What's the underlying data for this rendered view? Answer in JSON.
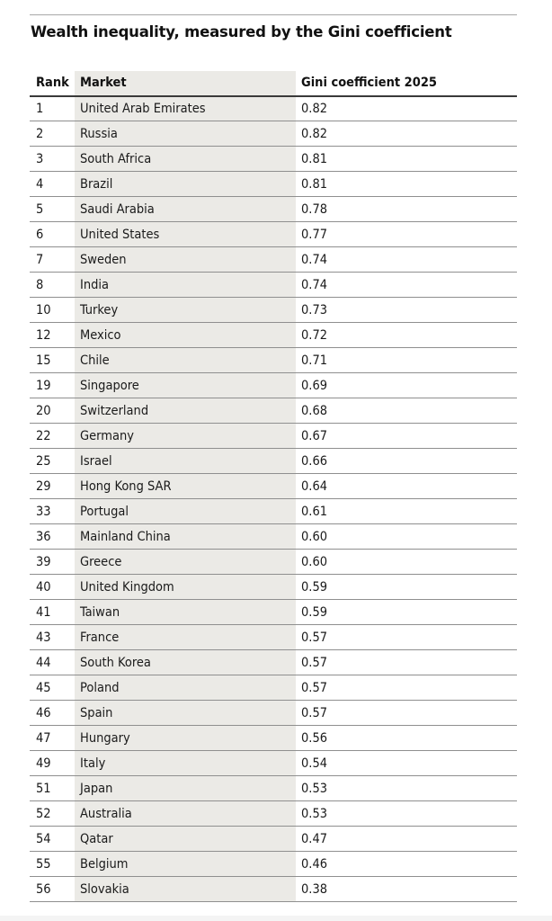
{
  "title": "Wealth inequality, measured by the Gini coefficient",
  "table": {
    "headers": {
      "rank": "Rank",
      "market": "Market",
      "gini": "Gini coefficient 2025"
    },
    "rows": [
      {
        "rank": "1",
        "market": "United Arab Emirates",
        "gini": "0.82"
      },
      {
        "rank": "2",
        "market": "Russia",
        "gini": "0.82"
      },
      {
        "rank": "3",
        "market": "South Africa",
        "gini": "0.81"
      },
      {
        "rank": "4",
        "market": "Brazil",
        "gini": "0.81"
      },
      {
        "rank": "5",
        "market": "Saudi Arabia",
        "gini": "0.78"
      },
      {
        "rank": "6",
        "market": "United States",
        "gini": "0.77"
      },
      {
        "rank": "7",
        "market": "Sweden",
        "gini": "0.74"
      },
      {
        "rank": "8",
        "market": "India",
        "gini": "0.74"
      },
      {
        "rank": "10",
        "market": "Turkey",
        "gini": "0.73"
      },
      {
        "rank": "12",
        "market": "Mexico",
        "gini": "0.72"
      },
      {
        "rank": "15",
        "market": "Chile",
        "gini": "0.71"
      },
      {
        "rank": "19",
        "market": "Singapore",
        "gini": "0.69"
      },
      {
        "rank": "20",
        "market": "Switzerland",
        "gini": "0.68"
      },
      {
        "rank": "22",
        "market": "Germany",
        "gini": "0.67"
      },
      {
        "rank": "25",
        "market": "Israel",
        "gini": "0.66"
      },
      {
        "rank": "29",
        "market": "Hong Kong SAR",
        "gini": "0.64"
      },
      {
        "rank": "33",
        "market": "Portugal",
        "gini": "0.61"
      },
      {
        "rank": "36",
        "market": "Mainland China",
        "gini": "0.60"
      },
      {
        "rank": "39",
        "market": "Greece",
        "gini": "0.60"
      },
      {
        "rank": "40",
        "market": "United Kingdom",
        "gini": "0.59"
      },
      {
        "rank": "41",
        "market": "Taiwan",
        "gini": "0.59"
      },
      {
        "rank": "43",
        "market": "France",
        "gini": "0.57"
      },
      {
        "rank": "44",
        "market": "South Korea",
        "gini": "0.57"
      },
      {
        "rank": "45",
        "market": "Poland",
        "gini": "0.57"
      },
      {
        "rank": "46",
        "market": "Spain",
        "gini": "0.57"
      },
      {
        "rank": "47",
        "market": "Hungary",
        "gini": "0.56"
      },
      {
        "rank": "49",
        "market": "Italy",
        "gini": "0.54"
      },
      {
        "rank": "51",
        "market": "Japan",
        "gini": "0.53"
      },
      {
        "rank": "52",
        "market": "Australia",
        "gini": "0.53"
      },
      {
        "rank": "54",
        "market": "Qatar",
        "gini": "0.47"
      },
      {
        "rank": "55",
        "market": "Belgium",
        "gini": "0.46"
      },
      {
        "rank": "56",
        "market": "Slovakia",
        "gini": "0.38"
      }
    ]
  },
  "colors": {
    "market_column_shade": "#ebeae6",
    "text": "#1a1a1a",
    "rule": "#8f8f8f"
  }
}
